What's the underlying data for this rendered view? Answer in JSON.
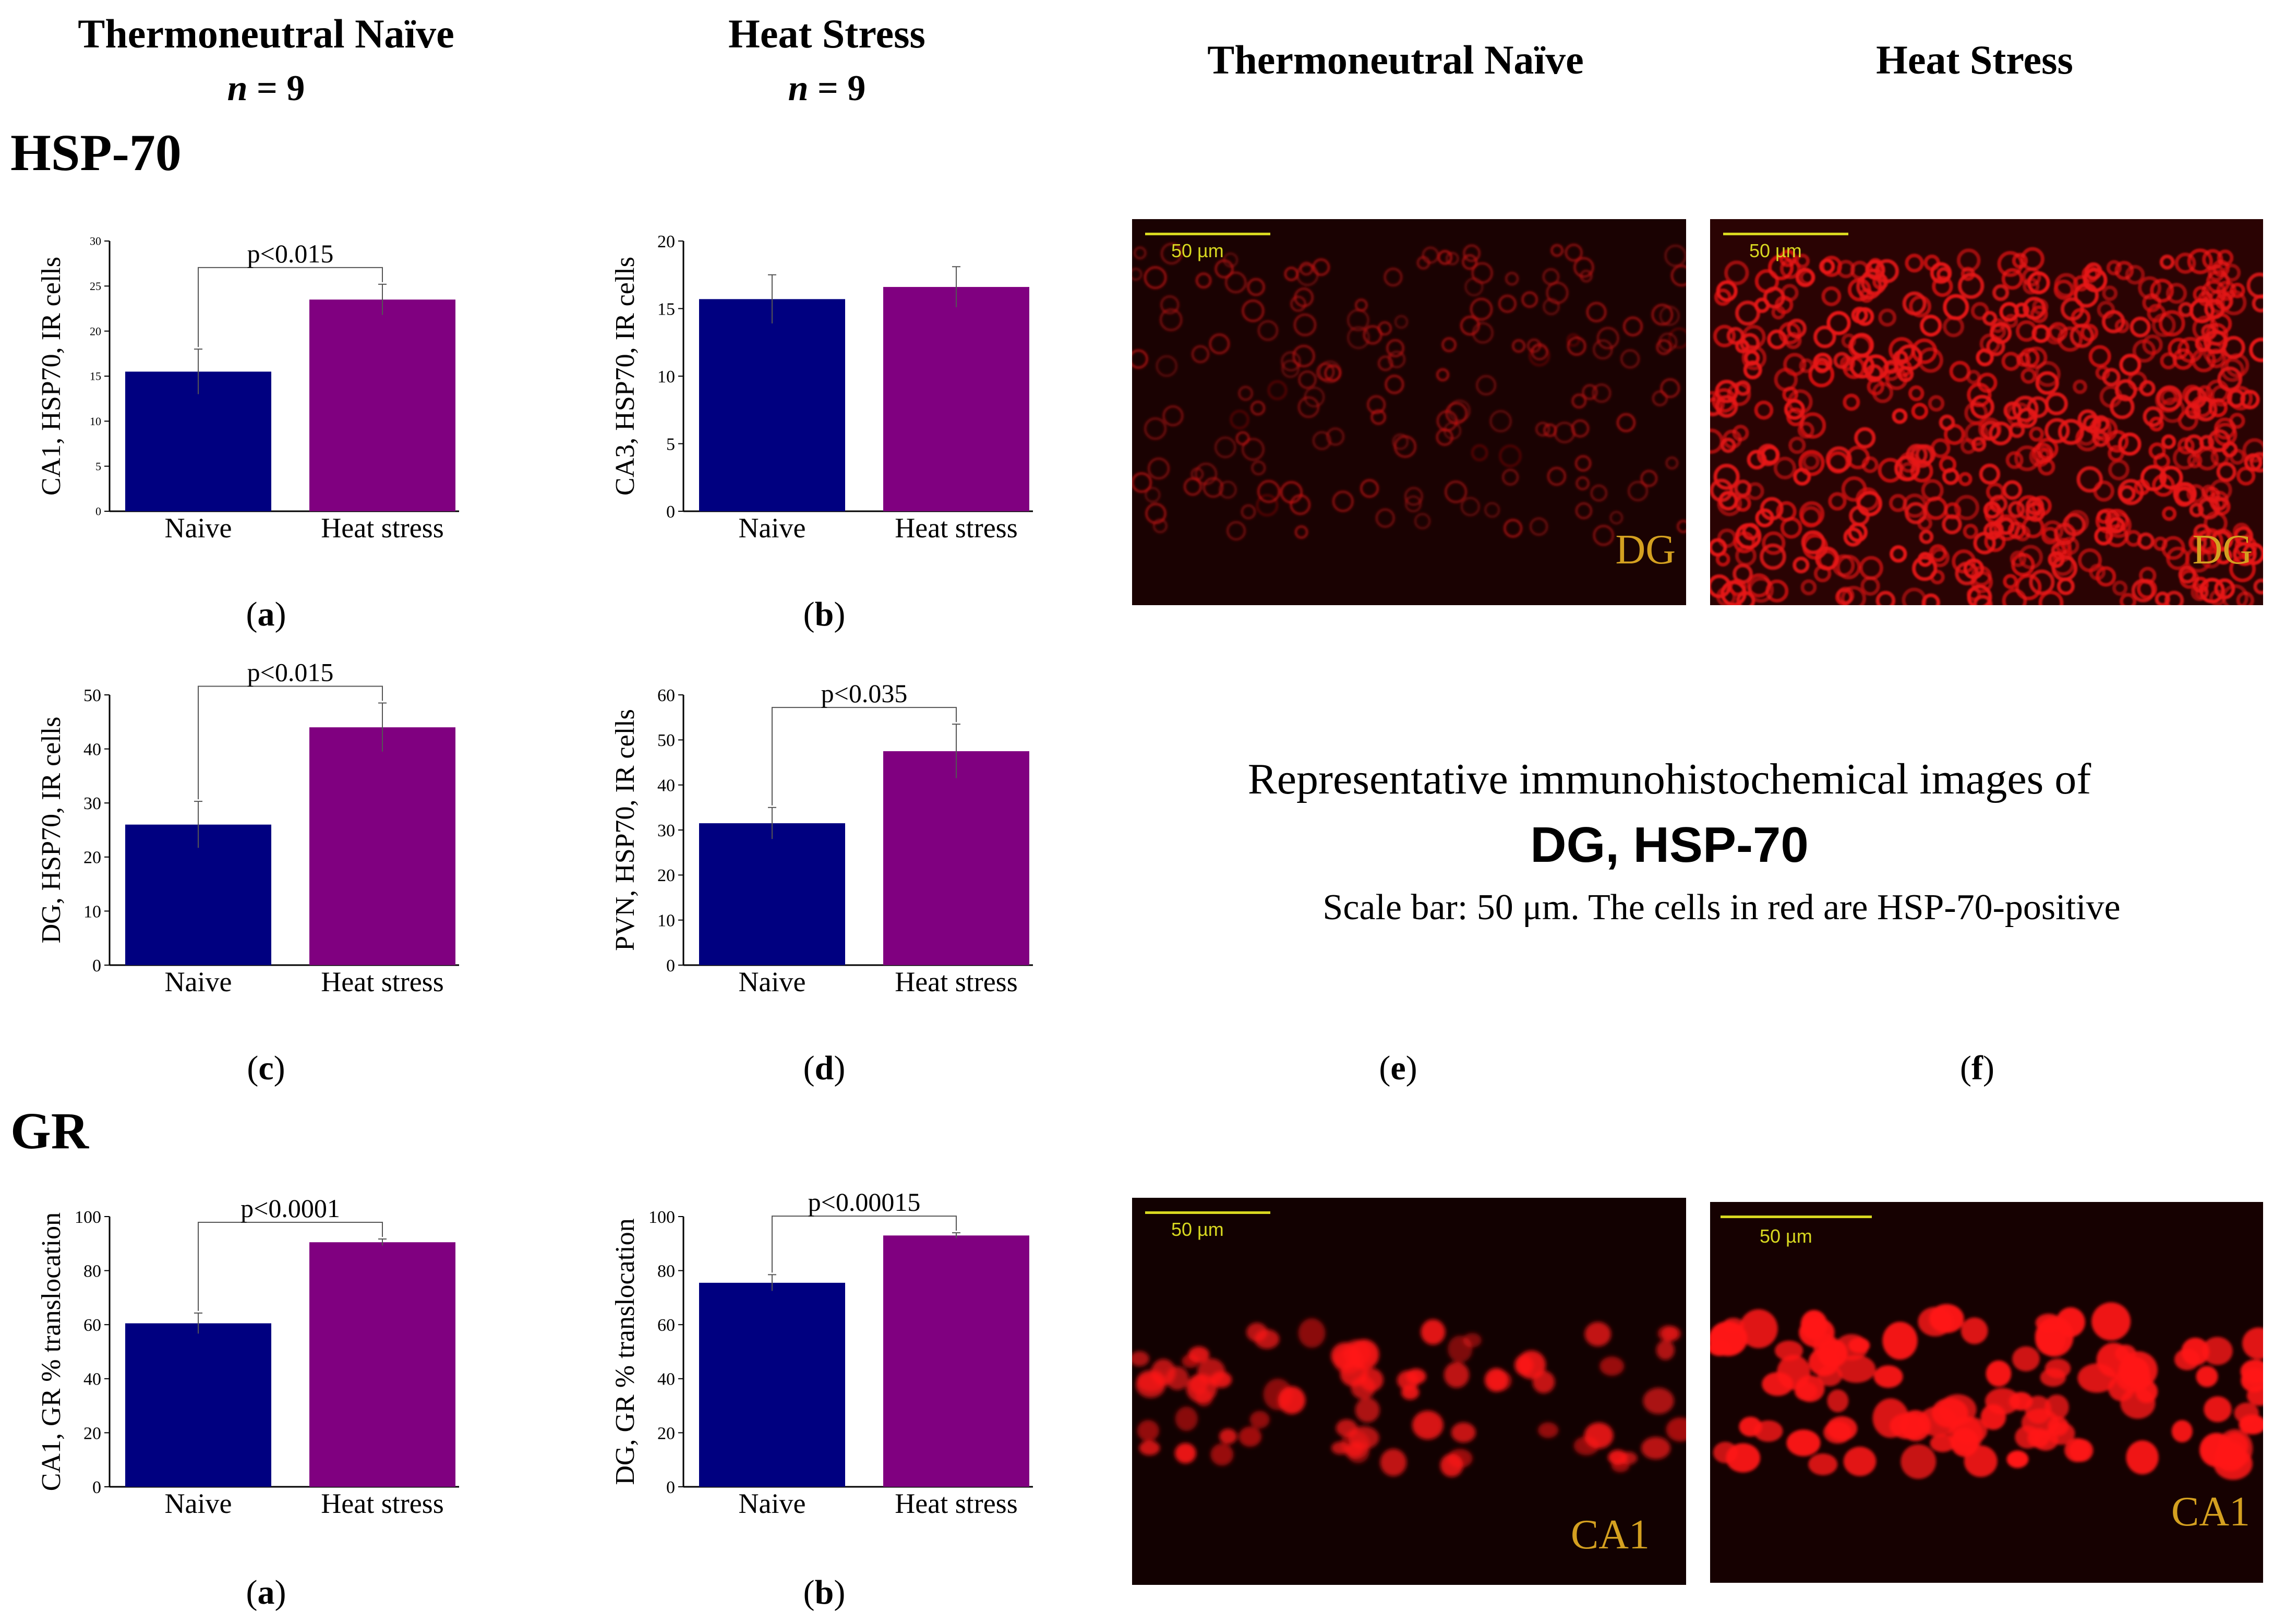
{
  "headers": {
    "left_naive": "Thermoneutral Naïve",
    "left_naive_n": "= 9",
    "left_heat": "Heat Stress",
    "left_heat_n": "= 9",
    "n_symbol": "n",
    "right_naive": "Thermoneutral Naïve",
    "right_heat": "Heat Stress"
  },
  "sections": {
    "hsp": "HSP-70",
    "gr": "GR"
  },
  "colors": {
    "naive": "#000080",
    "heat": "#800080",
    "scale_bar": "#d8d820",
    "region_label": "#d4a020"
  },
  "chart_data": [
    {
      "id": "a1",
      "panel": "a",
      "type": "bar",
      "categories": [
        "Naive",
        "Heat stress"
      ],
      "values": [
        15.5,
        23.5
      ],
      "errors": [
        2.5,
        1.7
      ],
      "ylabel": "CA1, HSP70, IR cells",
      "ylim": [
        0,
        30
      ],
      "yticks": [
        0,
        5,
        10,
        15,
        20,
        25,
        30
      ],
      "significance": "p<0.015"
    },
    {
      "id": "b1",
      "panel": "b",
      "type": "bar",
      "categories": [
        "Naive",
        "Heat stress"
      ],
      "values": [
        15.7,
        16.6
      ],
      "errors": [
        1.8,
        1.5
      ],
      "ylabel": "CA3, HSP70, IR cells",
      "ylim": [
        0,
        20
      ],
      "yticks": [
        0,
        5,
        10,
        15,
        20
      ],
      "significance": ""
    },
    {
      "id": "c",
      "panel": "c",
      "type": "bar",
      "categories": [
        "Naive",
        "Heat stress"
      ],
      "values": [
        26,
        44
      ],
      "errors": [
        4.3,
        4.5
      ],
      "ylabel": "DG, HSP70, IR cells",
      "ylim": [
        0,
        50
      ],
      "yticks": [
        0,
        10,
        20,
        30,
        40,
        50
      ],
      "significance": "p<0.015"
    },
    {
      "id": "d",
      "panel": "d",
      "type": "bar",
      "categories": [
        "Naive",
        "Heat stress"
      ],
      "values": [
        31.5,
        47.5
      ],
      "errors": [
        3.5,
        6.0
      ],
      "ylabel": "PVN, HSP70, IR cells",
      "ylim": [
        0,
        60
      ],
      "yticks": [
        0,
        10,
        20,
        30,
        40,
        50,
        60
      ],
      "significance": "p<0.035"
    },
    {
      "id": "a2",
      "panel": "a",
      "type": "bar",
      "categories": [
        "Naive",
        "Heat stress"
      ],
      "values": [
        60.5,
        90.5
      ],
      "errors": [
        3.8,
        1.2
      ],
      "ylabel": "CA1, GR % translocation",
      "ylim": [
        0,
        100
      ],
      "yticks": [
        0,
        20,
        40,
        60,
        80,
        100
      ],
      "significance": "p<0.0001"
    },
    {
      "id": "b2",
      "panel": "b",
      "type": "bar",
      "categories": [
        "Naive",
        "Heat stress"
      ],
      "values": [
        75.5,
        93
      ],
      "errors": [
        3.0,
        1.0
      ],
      "ylabel": "DG, GR % translocation",
      "ylim": [
        0,
        100
      ],
      "yticks": [
        0,
        20,
        40,
        60,
        80,
        100
      ],
      "significance": "p<0.00015"
    }
  ],
  "images": {
    "e": {
      "scale_label": "50 µm",
      "region": "DG",
      "panel": "e"
    },
    "f": {
      "scale_label": "50 µm",
      "region": "DG",
      "panel": "f"
    },
    "g": {
      "scale_label": "50 µm",
      "region": "CA1"
    },
    "h": {
      "scale_label": "50 µm",
      "region": "CA1"
    }
  },
  "caption": {
    "line1": "Representative immunohistochemical images of",
    "line2": "DG, HSP-70",
    "line3": "Scale bar: 50 μm. The cells in red are HSP-70-positive"
  }
}
